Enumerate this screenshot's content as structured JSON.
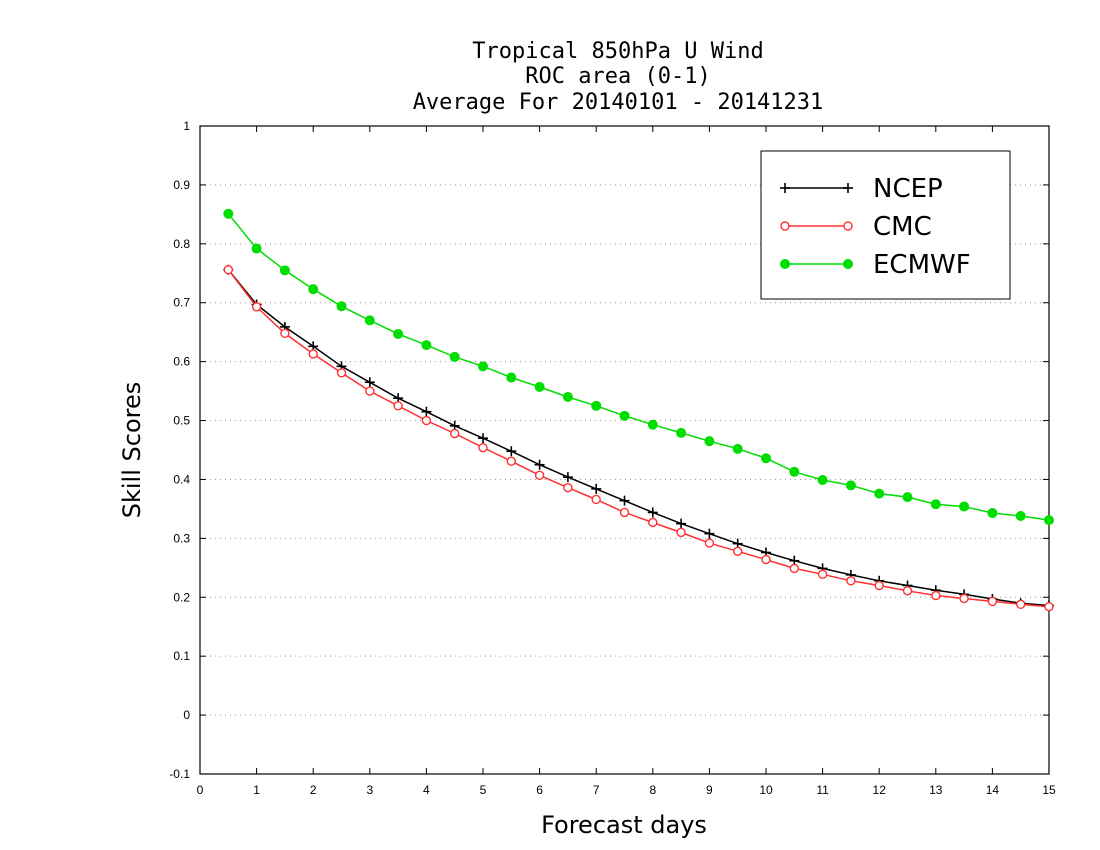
{
  "chart_data": {
    "type": "line",
    "title_lines": [
      "Tropical 850hPa U Wind",
      "ROC area (0-1)",
      "Average For 20140101 - 20141231"
    ],
    "xlabel": "Forecast days",
    "ylabel": "Skill Scores",
    "xlim": [
      0,
      15
    ],
    "ylim": [
      -0.1,
      1
    ],
    "xticks": [
      0,
      1,
      2,
      3,
      4,
      5,
      6,
      7,
      8,
      9,
      10,
      11,
      12,
      13,
      14,
      15
    ],
    "xtick_labels": [
      "0",
      "1",
      "2",
      "3",
      "4",
      "5",
      "6",
      "7",
      "8",
      "9",
      "10",
      "11",
      "12",
      "13",
      "14",
      "15"
    ],
    "yticks": [
      -0.1,
      0,
      0.1,
      0.2,
      0.3,
      0.4,
      0.5,
      0.6,
      0.7,
      0.8,
      0.9,
      1
    ],
    "ytick_labels": [
      "-0.1",
      "0",
      "0.1",
      "0.2",
      "0.3",
      "0.4",
      "0.5",
      "0.6",
      "0.7",
      "0.8",
      "0.9",
      "1"
    ],
    "grid": "dotted horizontal",
    "legend_position": "top-right",
    "x": [
      0.5,
      1,
      1.5,
      2,
      2.5,
      3,
      3.5,
      4,
      4.5,
      5,
      5.5,
      6,
      6.5,
      7,
      7.5,
      8,
      8.5,
      9,
      9.5,
      10,
      10.5,
      11,
      11.5,
      12,
      12.5,
      13,
      13.5,
      14,
      14.5,
      15
    ],
    "series": [
      {
        "name": "NCEP",
        "color": "#000000",
        "marker": "plus",
        "values": [
          0.756,
          0.697,
          0.659,
          0.626,
          0.592,
          0.565,
          0.538,
          0.515,
          0.491,
          0.47,
          0.448,
          0.425,
          0.404,
          0.384,
          0.364,
          0.344,
          0.325,
          0.308,
          0.291,
          0.276,
          0.262,
          0.249,
          0.238,
          0.228,
          0.22,
          0.212,
          0.205,
          0.197,
          0.19,
          0.186
        ]
      },
      {
        "name": "CMC",
        "color": "#ff3030",
        "marker": "open-circle",
        "values": [
          0.756,
          0.693,
          0.648,
          0.613,
          0.581,
          0.55,
          0.525,
          0.5,
          0.478,
          0.454,
          0.431,
          0.407,
          0.386,
          0.366,
          0.344,
          0.327,
          0.31,
          0.292,
          0.278,
          0.264,
          0.249,
          0.239,
          0.228,
          0.22,
          0.211,
          0.203,
          0.198,
          0.193,
          0.188,
          0.184
        ]
      },
      {
        "name": "ECMWF",
        "color": "#00dd00",
        "marker": "filled-circle",
        "values": [
          0.851,
          0.792,
          0.755,
          0.723,
          0.694,
          0.67,
          0.647,
          0.628,
          0.608,
          0.592,
          0.573,
          0.557,
          0.54,
          0.525,
          0.508,
          0.493,
          0.479,
          0.465,
          0.452,
          0.436,
          0.413,
          0.399,
          0.39,
          0.376,
          0.37,
          0.358,
          0.354,
          0.343,
          0.338,
          0.331
        ]
      }
    ]
  }
}
